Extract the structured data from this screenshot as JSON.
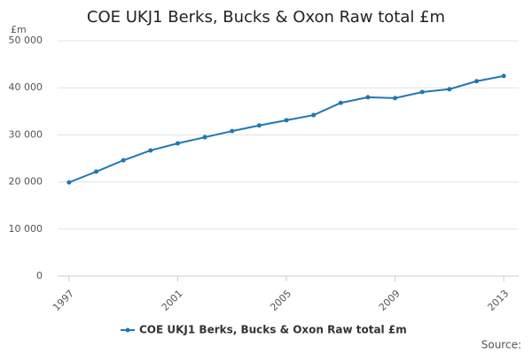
{
  "chart_data": {
    "type": "line",
    "title": "COE UKJ1 Berks, Bucks & Oxon Raw total £m",
    "y_label": "£m",
    "source": "Source:",
    "x": [
      1997,
      1998,
      1999,
      2000,
      2001,
      2002,
      2003,
      2004,
      2005,
      2006,
      2007,
      2008,
      2009,
      2010,
      2011,
      2012,
      2013
    ],
    "series": [
      {
        "name": "COE UKJ1 Berks, Bucks & Oxon Raw total £m",
        "color": "#1f77b4",
        "values": [
          19900,
          22200,
          24600,
          26700,
          28200,
          29500,
          30800,
          32000,
          33100,
          34200,
          36800,
          38000,
          37800,
          39100,
          39700,
          41400,
          42500
        ]
      }
    ],
    "xlim": [
      1996.58,
      2013.55
    ],
    "xticks": [
      1997,
      2001,
      2005,
      2009,
      2013
    ],
    "ylim": [
      0,
      50000
    ],
    "yticks": [
      0,
      {
        "value": 10000,
        "label": "10 000"
      },
      {
        "value": 20000,
        "label": "20 000"
      },
      {
        "value": 30000,
        "label": "30 000"
      },
      {
        "value": 40000,
        "label": "40 000"
      },
      {
        "value": 50000,
        "label": "50 000"
      }
    ],
    "grid": true,
    "legend": "bottom"
  }
}
